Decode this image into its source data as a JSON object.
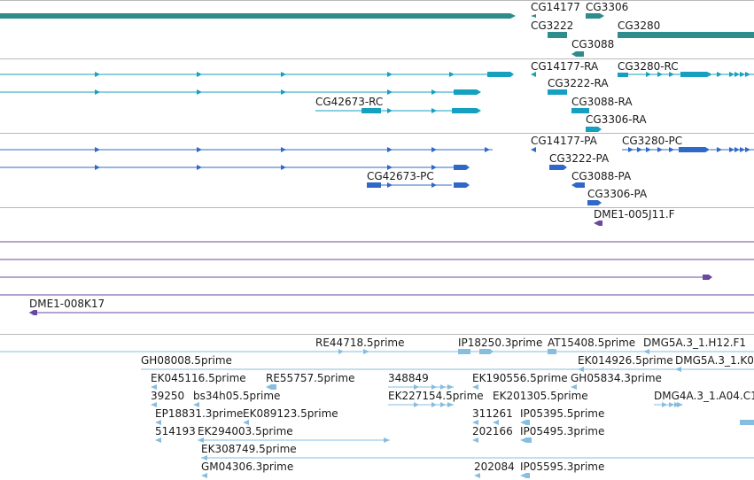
{
  "palette": {
    "gene": "#2f8c8c",
    "transcript": "#16a0bf",
    "protein": "#2f68c8",
    "clone": "#6a4aa0",
    "est": "#86bde0",
    "divider": "#b8b8b8"
  },
  "tracks": {
    "genes": {
      "labels": [
        "CG14177",
        "CG3306",
        "CG3222",
        "CG3280",
        "CG3088"
      ]
    },
    "transcripts": {
      "labels": [
        "CG14177-RA",
        "CG3280-RC",
        "CG3222-RA",
        "CG42673-RC",
        "CG3088-RA",
        "CG3306-RA"
      ]
    },
    "proteins": {
      "labels": [
        "CG14177-PA",
        "CG3280-PC",
        "CG3222-PA",
        "CG42673-PC",
        "CG3088-PA",
        "CG3306-PA"
      ]
    },
    "clones": {
      "labels": [
        "DME1-005J11.F",
        "DME1-008K17"
      ]
    },
    "ests": {
      "labels": [
        "RE44718.5prime",
        "IP18250.3prime",
        "AT15408.5prime",
        "DMG5A.3_1.H12.F1",
        "GH08008.5prime",
        "EK014926.5prime",
        "DMG5A.3_1.K0",
        "EK045116.5prime",
        "RE55757.5prime",
        "348849",
        "EK190556.5prime",
        "GH05834.3prime",
        "39250",
        "bs34h05.5prime",
        "EK227154.5prime",
        "DMG4A.3_1.A04.C1",
        "EP18831.3prime",
        "EK089123.5prime",
        "311261",
        "EK201305.5prime",
        "IP05395.5prime",
        "514193",
        "EK294003.5prime",
        "202166",
        "IP05495.3prime",
        "EK308749.5prime",
        "GM04306.3prime",
        "202084",
        "IP05595.3prime"
      ]
    }
  }
}
